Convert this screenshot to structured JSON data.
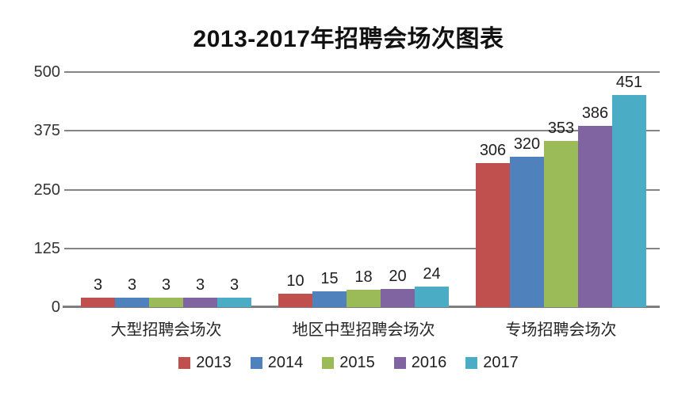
{
  "title": "2013-2017年招聘会场次图表",
  "chart_data": {
    "type": "bar",
    "title": "2013-2017年招聘会场次图表",
    "categories": [
      "大型招聘会场次",
      "地区中型招聘会场次",
      "专场招聘会场次"
    ],
    "series": [
      {
        "name": "2013",
        "color": "#C0504D",
        "values": [
          3,
          10,
          306
        ]
      },
      {
        "name": "2014",
        "color": "#4F81BD",
        "values": [
          3,
          15,
          320
        ]
      },
      {
        "name": "2015",
        "color": "#9BBB59",
        "values": [
          3,
          18,
          353
        ]
      },
      {
        "name": "2016",
        "color": "#8064A2",
        "values": [
          3,
          20,
          386
        ]
      },
      {
        "name": "2017",
        "color": "#4BACC6",
        "values": [
          3,
          24,
          451
        ]
      }
    ],
    "ylim": [
      0,
      500
    ],
    "yticks": [
      0,
      125,
      250,
      375,
      500
    ],
    "grid": true,
    "data_labels": true,
    "legend_position": "bottom",
    "grid_color": "#848484",
    "axis_color": "#7f7f7f",
    "text_color": "#262626"
  }
}
